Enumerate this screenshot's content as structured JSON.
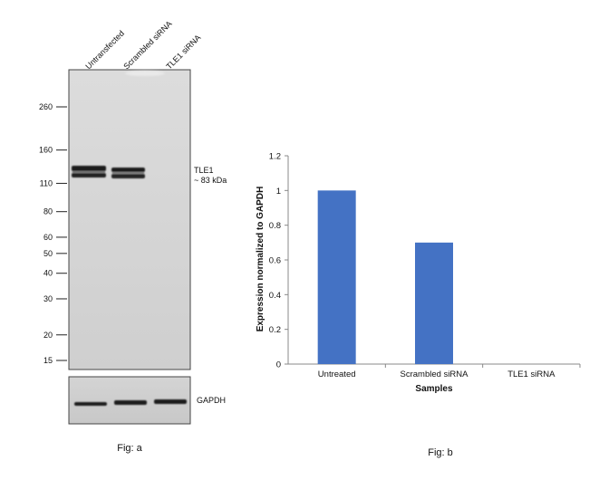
{
  "panel_a": {
    "lane_labels": [
      "Untransfected",
      "Scrambled siRNA",
      "TLE1 siRNA"
    ],
    "markers": [
      260,
      160,
      110,
      80,
      60,
      50,
      40,
      30,
      20,
      15
    ],
    "band_label_line1": "TLE1",
    "band_label_line2": "~ 83 kDa",
    "loading_control_label": "GAPDH",
    "caption": "Fig: a"
  },
  "panel_b": {
    "caption": "Fig: b",
    "bar_color": "#4472c4"
  },
  "chart_data": {
    "type": "bar",
    "categories": [
      "Untreated",
      "Scrambled siRNA",
      "TLE1 siRNA"
    ],
    "values": [
      1.0,
      0.7,
      0.0
    ],
    "title": "",
    "xlabel": "Samples",
    "ylabel": "Expression normalized to GAPDH",
    "ylim": [
      0,
      1.2
    ],
    "yticks": [
      0,
      0.2,
      0.4,
      0.6,
      0.8,
      1,
      1.2
    ],
    "grid": false,
    "legend": "none"
  }
}
